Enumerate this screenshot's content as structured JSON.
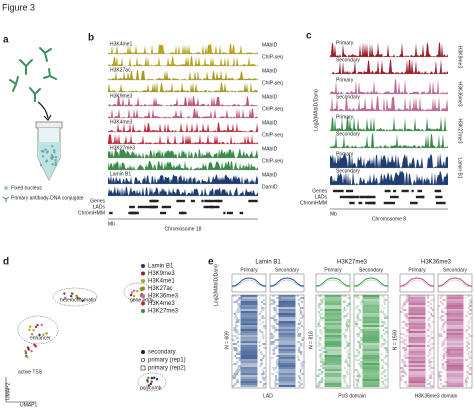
{
  "header": {
    "title": "Figure 3"
  },
  "panels": {
    "a": {
      "label": "a",
      "legend": [
        "Fixed nucleus",
        "Primary antibody-DNA conjugate"
      ]
    },
    "b": {
      "label": "b",
      "tracks": [
        {
          "name": "H3K4me1",
          "color": "#b8a21e",
          "rows": [
            "MAbID",
            "ChIP-seq"
          ]
        },
        {
          "name": "H3K27ac",
          "color": "#a99a1c",
          "rows": [
            "MAbID",
            "ChIP-seq"
          ]
        },
        {
          "name": "H3K9me3",
          "color": "#c0507a",
          "rows": [
            "MAbID",
            "ChIP-seq"
          ]
        },
        {
          "name": "H3K4me3",
          "color": "#c0283a",
          "rows": [
            "MAbID",
            "ChIP-seq"
          ]
        },
        {
          "name": "H3K27me3",
          "color": "#3a8a4a",
          "rows": [
            "MAbID",
            "ChIP-seq"
          ]
        },
        {
          "name": "Lamin B1",
          "color": "#1f3d70",
          "rows": [
            "MAbID",
            "DamID"
          ]
        }
      ],
      "annotations": [
        "Genes",
        "LADs",
        "ChromHMM"
      ],
      "unit": "Mb",
      "xaxis": "Chromosome 18"
    },
    "c": {
      "label": "c",
      "ylabel": "Log2(MAbID/Dam)",
      "tracks": [
        {
          "name": "H3K9me3",
          "color": "#9b1b2a",
          "rows": [
            "Primary",
            "Secondary"
          ]
        },
        {
          "name": "H3K36me3",
          "color": "#c06a98",
          "rows": [
            "Primary",
            "Secondary"
          ]
        },
        {
          "name": "H3K27me3",
          "color": "#3a8a4a",
          "rows": [
            "Primary",
            "Secondary"
          ]
        },
        {
          "name": "Lamin B1",
          "color": "#1f3d70",
          "rows": [
            "Primary",
            "Secondary"
          ]
        }
      ],
      "annotations": [
        "Genes",
        "LADs",
        "ChromHMM"
      ],
      "unit": "Mb",
      "xaxis": "Chromosome 8"
    },
    "d": {
      "label": "d",
      "clusters": [
        "heterochromatin",
        "gene body",
        "enhancer",
        "active TSS",
        "polycomb"
      ],
      "legend": [
        {
          "name": "Lamin B1",
          "color": "#1f3d70"
        },
        {
          "name": "H3K9me3",
          "color": "#9b1b2a"
        },
        {
          "name": "H3K4me1",
          "color": "#b8a21e"
        },
        {
          "name": "H3K27ac",
          "color": "#8a8a1c"
        },
        {
          "name": "H3K36me3",
          "color": "#c06a98"
        },
        {
          "name": "H3K4me3",
          "color": "#c0283a"
        },
        {
          "name": "H3K27me3",
          "color": "#3a8a4a"
        }
      ],
      "shape_legend": [
        "secondary",
        "primary (rep1)",
        "primary (rep2)"
      ],
      "xlabel": "UMAP1",
      "ylabel": "UMAP2"
    },
    "e": {
      "label": "e",
      "ylabel": "Log2(MAbID/Dam)",
      "groups": [
        {
          "title": "Lamin B1",
          "color": "#2b4f8a",
          "columns": [
            "Primary",
            "Secondary"
          ],
          "n": "N = 609",
          "domain": "LAD"
        },
        {
          "title": "H3K27me3",
          "color": "#3a9a4a",
          "columns": [
            "Primary",
            "Secondary"
          ],
          "n": "N = 816",
          "domain": "PcG domain"
        },
        {
          "title": "H3K36me3",
          "color": "#b0508a",
          "columns": [
            "Primary",
            "Secondary"
          ],
          "n": "N = 1500",
          "domain": "H3K36me3 domain"
        }
      ]
    }
  }
}
